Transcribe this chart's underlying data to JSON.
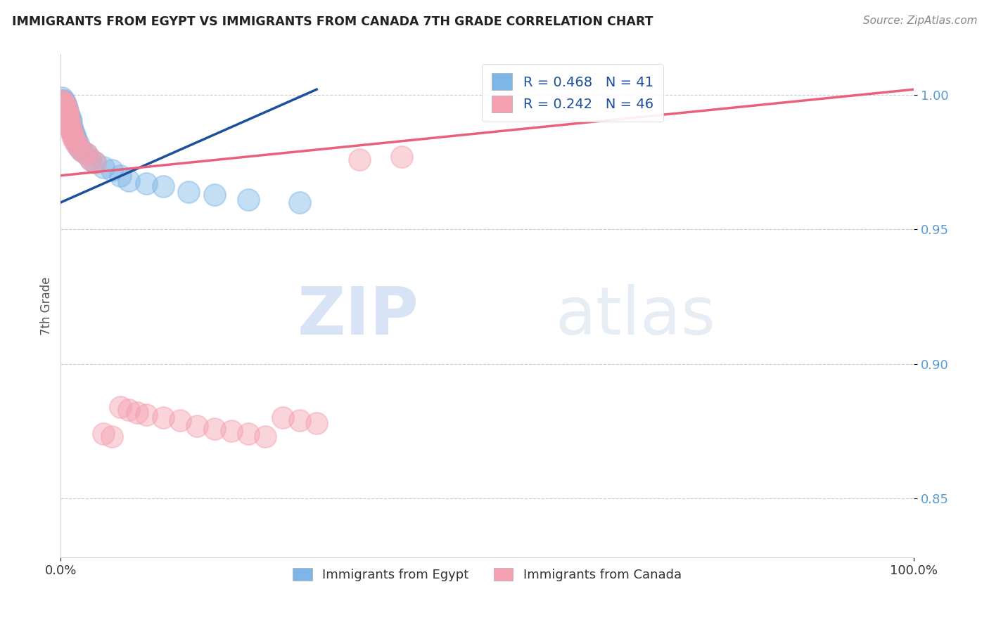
{
  "title": "IMMIGRANTS FROM EGYPT VS IMMIGRANTS FROM CANADA 7TH GRADE CORRELATION CHART",
  "source": "Source: ZipAtlas.com",
  "ylabel": "7th Grade",
  "xlim": [
    0.0,
    1.0
  ],
  "ylim": [
    0.828,
    1.015
  ],
  "ytick_labels": [
    "85.0%",
    "90.0%",
    "95.0%",
    "100.0%"
  ],
  "ytick_values": [
    0.85,
    0.9,
    0.95,
    1.0
  ],
  "xtick_labels": [
    "0.0%",
    "100.0%"
  ],
  "xtick_values": [
    0.0,
    1.0
  ],
  "blue_R": 0.468,
  "blue_N": 41,
  "pink_R": 0.242,
  "pink_N": 46,
  "blue_color": "#7EB6E8",
  "pink_color": "#F4A0B0",
  "blue_line_color": "#1C4F9C",
  "pink_line_color": "#E8607A",
  "legend_label_blue": "Immigrants from Egypt",
  "legend_label_pink": "Immigrants from Canada",
  "watermark_zip": "ZIP",
  "watermark_atlas": "atlas",
  "blue_points_x": [
    0.001,
    0.002,
    0.003,
    0.003,
    0.004,
    0.004,
    0.005,
    0.005,
    0.006,
    0.006,
    0.007,
    0.007,
    0.008,
    0.009,
    0.009,
    0.01,
    0.01,
    0.011,
    0.012,
    0.013,
    0.014,
    0.015,
    0.016,
    0.017,
    0.018,
    0.02,
    0.022,
    0.025,
    0.03,
    0.035,
    0.04,
    0.05,
    0.06,
    0.07,
    0.08,
    0.1,
    0.12,
    0.15,
    0.18,
    0.22,
    0.28
  ],
  "blue_points_y": [
    0.999,
    0.998,
    0.997,
    0.995,
    0.998,
    0.994,
    0.997,
    0.993,
    0.996,
    0.992,
    0.995,
    0.991,
    0.994,
    0.993,
    0.99,
    0.992,
    0.989,
    0.991,
    0.99,
    0.988,
    0.987,
    0.986,
    0.985,
    0.984,
    0.983,
    0.982,
    0.98,
    0.979,
    0.978,
    0.976,
    0.975,
    0.973,
    0.972,
    0.97,
    0.968,
    0.967,
    0.966,
    0.964,
    0.963,
    0.961,
    0.96
  ],
  "pink_points_x": [
    0.001,
    0.002,
    0.002,
    0.003,
    0.004,
    0.004,
    0.005,
    0.005,
    0.006,
    0.006,
    0.007,
    0.008,
    0.008,
    0.009,
    0.01,
    0.01,
    0.011,
    0.012,
    0.013,
    0.014,
    0.015,
    0.016,
    0.018,
    0.02,
    0.025,
    0.03,
    0.035,
    0.04,
    0.05,
    0.06,
    0.07,
    0.08,
    0.09,
    0.1,
    0.12,
    0.14,
    0.16,
    0.18,
    0.2,
    0.22,
    0.24,
    0.26,
    0.28,
    0.3,
    0.35,
    0.4
  ],
  "pink_points_y": [
    0.998,
    0.997,
    0.996,
    0.995,
    0.997,
    0.994,
    0.996,
    0.993,
    0.995,
    0.992,
    0.994,
    0.993,
    0.991,
    0.992,
    0.99,
    0.989,
    0.988,
    0.987,
    0.986,
    0.985,
    0.984,
    0.983,
    0.982,
    0.981,
    0.979,
    0.978,
    0.976,
    0.975,
    0.874,
    0.873,
    0.884,
    0.883,
    0.882,
    0.881,
    0.88,
    0.879,
    0.877,
    0.876,
    0.875,
    0.874,
    0.873,
    0.88,
    0.879,
    0.878,
    0.976,
    0.977
  ],
  "blue_trend_x": [
    0.0,
    0.3
  ],
  "blue_trend_y": [
    0.96,
    1.002
  ],
  "pink_trend_x": [
    0.0,
    1.0
  ],
  "pink_trend_y": [
    0.97,
    1.002
  ]
}
